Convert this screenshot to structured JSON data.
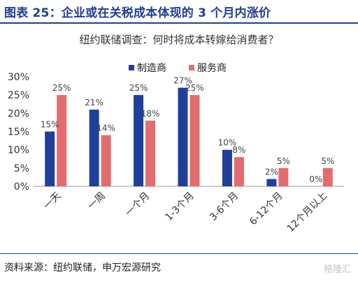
{
  "figure_title": "图表 25：企业或在关税成本体现的 3 个月内涨价",
  "source": "资料来源：纽约联储，申万宏源研究",
  "watermark": "格隆汇",
  "colors": {
    "manufacturer": "#1f3f9a",
    "services": "#e36c6f",
    "rule": "#1f3f8f"
  },
  "chart_data": {
    "type": "bar",
    "title": "纽约联储调查：何时将成本转嫁给消费者？",
    "categories": [
      "一天",
      "一周",
      "一个月",
      "1-3个月",
      "3-6个月",
      "6-12个月",
      "12个月以上"
    ],
    "series": [
      {
        "name": "制造商",
        "values": [
          15,
          21,
          25,
          27,
          10,
          2,
          0
        ],
        "labels": [
          "15%",
          "21%",
          "25%",
          "27%",
          "10%",
          "2%",
          "0%"
        ]
      },
      {
        "name": "服务商",
        "values": [
          25,
          14,
          18,
          25,
          8,
          5,
          5
        ],
        "labels": [
          "25%",
          "14%",
          "18%",
          "25%",
          "8%",
          "5%",
          "5%"
        ]
      }
    ],
    "ylim": [
      0,
      30
    ],
    "yticks": [
      "0%",
      "5%",
      "10%",
      "15%",
      "20%",
      "25%",
      "30%"
    ],
    "legend_position": "top-center",
    "grid": false
  }
}
